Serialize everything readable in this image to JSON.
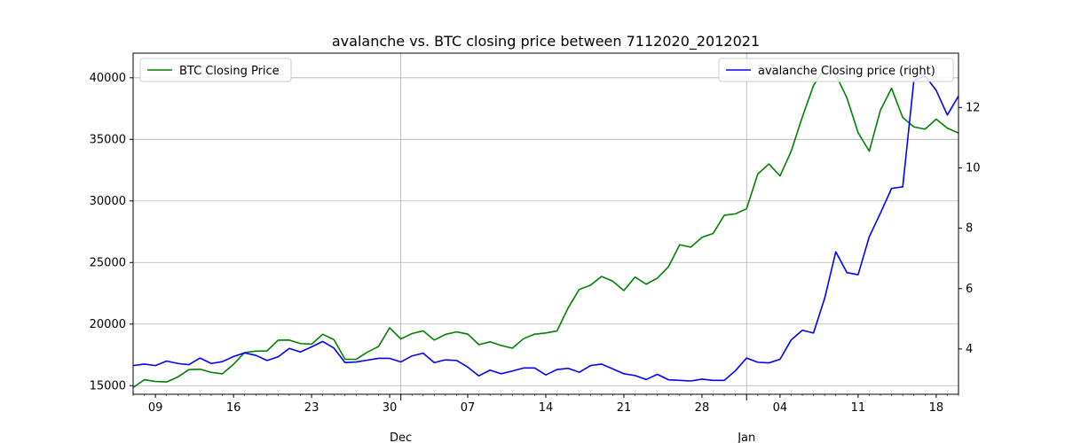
{
  "chart_data": {
    "type": "line",
    "title": "avalanche vs. BTC closing price between 7112020_2012021",
    "xlabel": "",
    "ylabel": "",
    "x": [
      "2020-11-07",
      "2020-11-08",
      "2020-11-09",
      "2020-11-10",
      "2020-11-11",
      "2020-11-12",
      "2020-11-13",
      "2020-11-14",
      "2020-11-15",
      "2020-11-16",
      "2020-11-17",
      "2020-11-18",
      "2020-11-19",
      "2020-11-20",
      "2020-11-21",
      "2020-11-22",
      "2020-11-23",
      "2020-11-24",
      "2020-11-25",
      "2020-11-26",
      "2020-11-27",
      "2020-11-28",
      "2020-11-29",
      "2020-11-30",
      "2020-12-01",
      "2020-12-02",
      "2020-12-03",
      "2020-12-04",
      "2020-12-05",
      "2020-12-06",
      "2020-12-07",
      "2020-12-08",
      "2020-12-09",
      "2020-12-10",
      "2020-12-11",
      "2020-12-12",
      "2020-12-13",
      "2020-12-14",
      "2020-12-15",
      "2020-12-16",
      "2020-12-17",
      "2020-12-18",
      "2020-12-19",
      "2020-12-20",
      "2020-12-21",
      "2020-12-22",
      "2020-12-23",
      "2020-12-24",
      "2020-12-25",
      "2020-12-26",
      "2020-12-27",
      "2020-12-28",
      "2020-12-29",
      "2020-12-30",
      "2020-12-31",
      "2021-01-01",
      "2021-01-02",
      "2021-01-03",
      "2021-01-04",
      "2021-01-05",
      "2021-01-06",
      "2021-01-07",
      "2021-01-08",
      "2021-01-09",
      "2021-01-10",
      "2021-01-11",
      "2021-01-12",
      "2021-01-13",
      "2021-01-14",
      "2021-01-15",
      "2021-01-16",
      "2021-01-17",
      "2021-01-18",
      "2021-01-19",
      "2021-01-20"
    ],
    "x_ticks": [
      "09",
      "16",
      "23",
      "30",
      "07",
      "14",
      "21",
      "28",
      "04",
      "11",
      "18"
    ],
    "x_month_labels": [
      "Dec",
      "Jan"
    ],
    "y_left_ticks": [
      "15000",
      "20000",
      "25000",
      "30000",
      "35000",
      "40000"
    ],
    "y_right_ticks": [
      "4",
      "6",
      "8",
      "10",
      "12"
    ],
    "ylim_left": [
      14300,
      42000
    ],
    "ylim_right": [
      2.5,
      13.8
    ],
    "grid": true,
    "series": [
      {
        "name": "BTC Closing Price",
        "axis": "left",
        "color": "#008000",
        "legend_position": "top-left",
        "values": [
          14850,
          15480,
          15340,
          15300,
          15700,
          16300,
          16340,
          16080,
          15960,
          16730,
          17690,
          17800,
          17820,
          18690,
          18700,
          18420,
          18370,
          19170,
          18740,
          17150,
          17140,
          17720,
          18180,
          19700,
          18790,
          19230,
          19450,
          18700,
          19160,
          19370,
          19190,
          18330,
          18560,
          18260,
          18040,
          18810,
          19180,
          19280,
          19440,
          21310,
          22820,
          23150,
          23870,
          23480,
          22720,
          23820,
          23240,
          23730,
          24660,
          26440,
          26250,
          27040,
          27360,
          28840,
          28950,
          29370,
          32180,
          33000,
          32030,
          34040,
          36820,
          39370,
          40790,
          40250,
          38360,
          35540,
          34040,
          37370,
          39150,
          36770,
          36010,
          35830,
          36640,
          35910,
          35510
        ]
      },
      {
        "name": "avalanche Closing price (right)",
        "axis": "right",
        "color": "#0000ff",
        "legend_position": "top-right",
        "values": [
          3.45,
          3.5,
          3.45,
          3.6,
          3.52,
          3.48,
          3.7,
          3.52,
          3.58,
          3.75,
          3.87,
          3.79,
          3.62,
          3.74,
          4.02,
          3.9,
          4.07,
          4.25,
          4.03,
          3.55,
          3.57,
          3.63,
          3.69,
          3.69,
          3.57,
          3.77,
          3.86,
          3.55,
          3.64,
          3.62,
          3.4,
          3.11,
          3.3,
          3.18,
          3.27,
          3.37,
          3.37,
          3.14,
          3.32,
          3.36,
          3.23,
          3.45,
          3.5,
          3.34,
          3.18,
          3.12,
          2.99,
          3.16,
          2.98,
          2.96,
          2.94,
          3.0,
          2.96,
          2.96,
          3.28,
          3.7,
          3.56,
          3.54,
          3.66,
          4.3,
          4.62,
          4.53,
          5.68,
          7.22,
          6.53,
          6.46,
          7.72,
          8.5,
          9.32,
          9.37,
          12.9,
          13.05,
          12.57,
          11.75,
          12.38
        ]
      }
    ]
  }
}
